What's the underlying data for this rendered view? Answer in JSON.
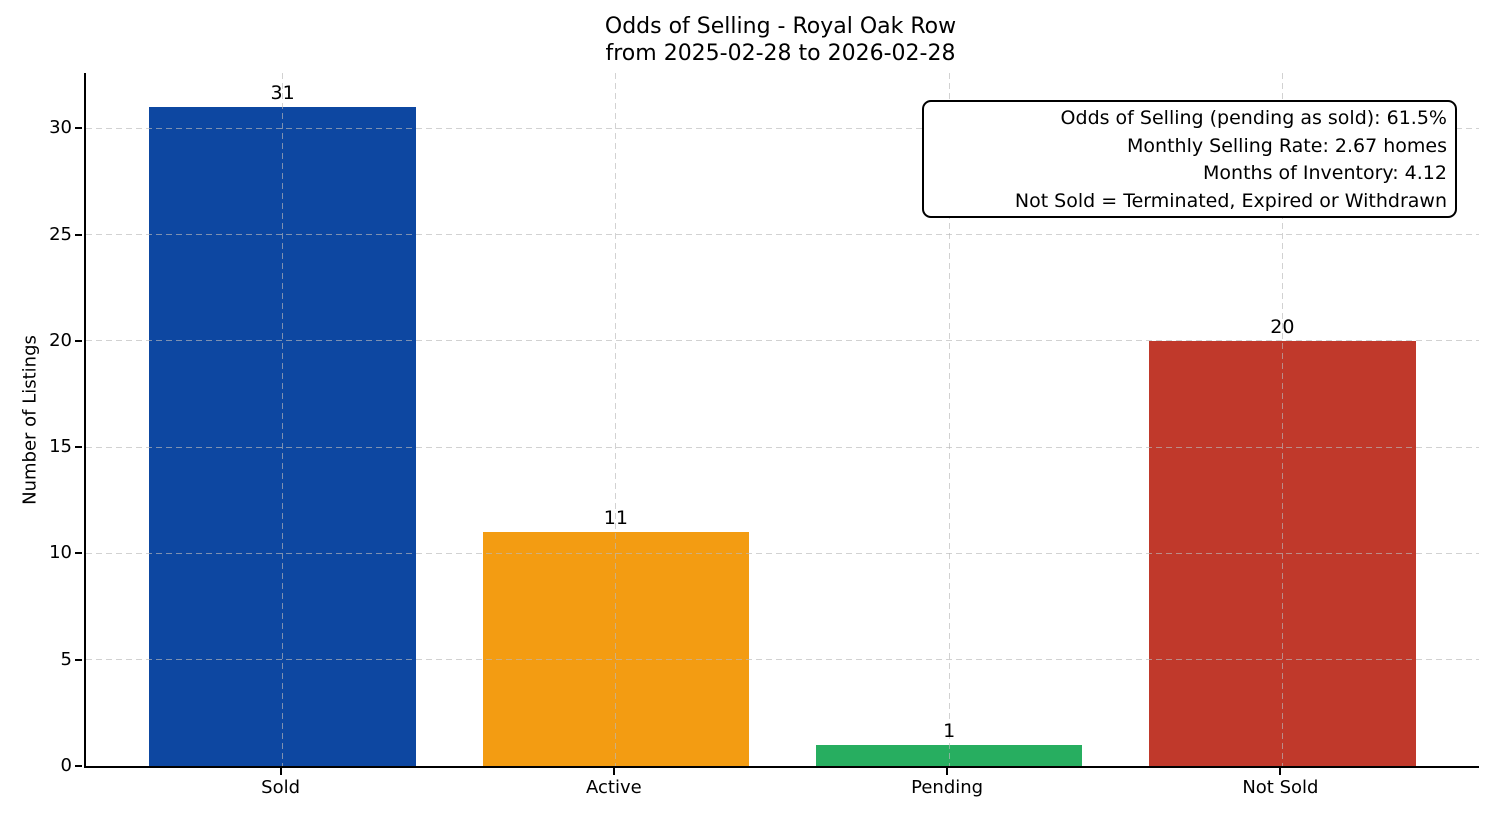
{
  "figure": {
    "title_line1": "Odds of Selling - Royal Oak Row",
    "title_line2": "from 2025-02-28 to 2026-02-28"
  },
  "annotation": {
    "lines": [
      "Odds of Selling (pending as sold): 61.5%",
      "Monthly Selling Rate: 2.67 homes",
      "Months of Inventory: 4.12",
      "Not Sold = Terminated, Expired or Withdrawn"
    ]
  },
  "chart_data": {
    "type": "bar",
    "title": "Odds of Selling - Royal Oak Row\nfrom 2025-02-28 to 2026-02-28",
    "categories": [
      "Sold",
      "Active",
      "Pending",
      "Not Sold"
    ],
    "values": [
      31,
      11,
      1,
      20
    ],
    "bar_colors": [
      "#0d47a1",
      "#f39c12",
      "#27ae60",
      "#c0392b"
    ],
    "value_labels": [
      "31",
      "11",
      "1",
      "20"
    ],
    "xlabel": "",
    "ylabel": "Number of Listings",
    "ylim": [
      0,
      32.6
    ],
    "yticks": [
      0,
      5,
      10,
      15,
      20,
      25,
      30
    ],
    "grid": "dashed, horizontal and vertical, drawn over bars",
    "grid_color": "#b9b9b9",
    "axis_color": "#000000",
    "background_color": "#ffffff",
    "legend": "none"
  }
}
